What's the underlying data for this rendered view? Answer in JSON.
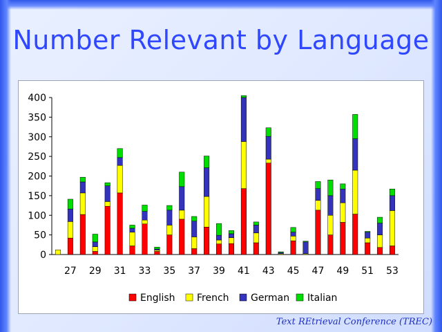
{
  "slide": {
    "title": "Number Relevant by Language",
    "footer": "Text REtrieval Conference (TREC)"
  },
  "chart_data": {
    "type": "bar",
    "stacked": true,
    "categories": [
      26,
      27,
      28,
      29,
      30,
      31,
      32,
      33,
      34,
      35,
      36,
      37,
      38,
      39,
      40,
      41,
      42,
      43,
      44,
      45,
      46,
      47,
      48,
      49,
      50,
      51,
      52,
      53
    ],
    "x_tick_labels": [
      "27",
      "29",
      "31",
      "33",
      "35",
      "37",
      "39",
      "41",
      "43",
      "45",
      "47",
      "49",
      "51",
      "53"
    ],
    "ylim": [
      0,
      400
    ],
    "y_ticks": [
      0,
      50,
      100,
      150,
      200,
      250,
      300,
      350,
      400
    ],
    "grid": false,
    "legend_position": "bottom",
    "series": [
      {
        "name": "English",
        "color": "#ff0000",
        "values": [
          0,
          42,
          102,
          8,
          123,
          157,
          22,
          78,
          8,
          50,
          90,
          15,
          70,
          27,
          28,
          168,
          30,
          233,
          0,
          35,
          0,
          113,
          50,
          82,
          103,
          30,
          18,
          22
        ]
      },
      {
        "name": "French",
        "color": "#ffff00",
        "values": [
          12,
          42,
          55,
          12,
          12,
          70,
          35,
          10,
          3,
          25,
          23,
          30,
          78,
          10,
          15,
          120,
          25,
          10,
          2,
          12,
          2,
          25,
          50,
          50,
          112,
          12,
          32,
          90
        ]
      },
      {
        "name": "German",
        "color": "#3333bb",
        "values": [
          0,
          32,
          28,
          12,
          40,
          20,
          10,
          22,
          3,
          38,
          60,
          40,
          73,
          12,
          10,
          112,
          20,
          58,
          3,
          10,
          30,
          30,
          50,
          35,
          80,
          15,
          30,
          38
        ]
      },
      {
        "name": "Italian",
        "color": "#00dd00",
        "values": [
          0,
          25,
          12,
          20,
          8,
          23,
          8,
          16,
          5,
          12,
          37,
          12,
          30,
          30,
          8,
          5,
          8,
          22,
          2,
          12,
          2,
          18,
          40,
          13,
          62,
          2,
          15,
          17
        ]
      }
    ]
  }
}
